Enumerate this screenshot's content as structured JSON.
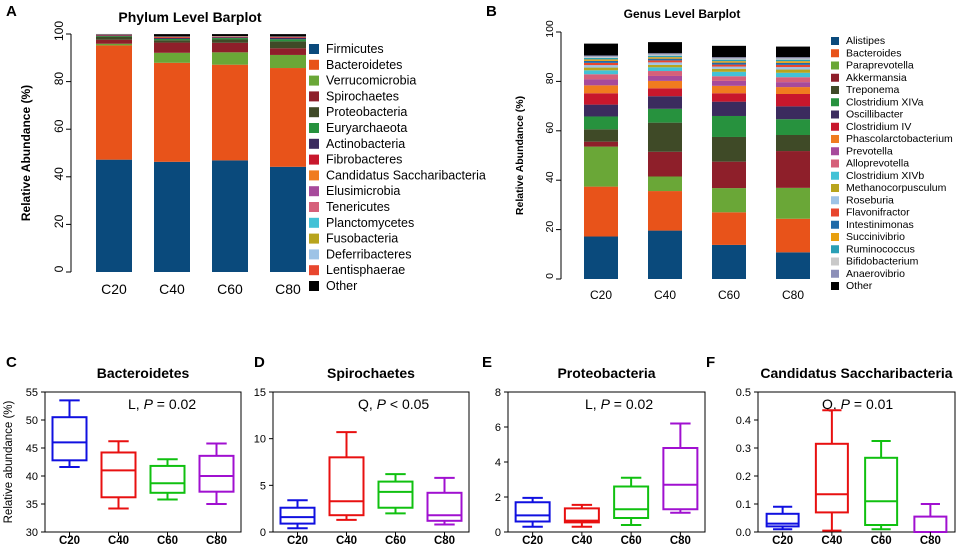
{
  "chart_data": [
    {
      "panel": "A",
      "type": "bar",
      "stacked": true,
      "title": "Phylum Level Barplot",
      "ylabel": "Relative Abundance (%)",
      "xlabel": "",
      "ylim": [
        0,
        100
      ],
      "yticks": [
        0,
        20,
        40,
        60,
        80,
        100
      ],
      "categories": [
        "C20",
        "C40",
        "C60",
        "C80"
      ],
      "legend_position": "right",
      "series": [
        {
          "name": "Firmicutes",
          "color": "#0a4a7c",
          "values": [
            47.2,
            46.3,
            46.9,
            44.2
          ]
        },
        {
          "name": "Bacteroidetes",
          "color": "#e8531a",
          "values": [
            48.0,
            41.6,
            40.2,
            41.5
          ]
        },
        {
          "name": "Verrucomicrobia",
          "color": "#6aa737",
          "values": [
            0.7,
            4.2,
            5.2,
            5.5
          ]
        },
        {
          "name": "Spirochaetes",
          "color": "#8e1f2a",
          "values": [
            1.7,
            4.3,
            4.0,
            2.8
          ]
        },
        {
          "name": "Proteobacteria",
          "color": "#3f4a27",
          "values": [
            1.3,
            1.0,
            1.4,
            2.9
          ]
        },
        {
          "name": "Euryarchaeota",
          "color": "#27923e",
          "values": [
            0.3,
            0.5,
            0.6,
            0.9
          ]
        },
        {
          "name": "Actinobacteria",
          "color": "#3b2b5e",
          "values": [
            0.2,
            0.4,
            0.3,
            0.6
          ]
        },
        {
          "name": "Fibrobacteres",
          "color": "#c8172c",
          "values": [
            0.2,
            0.3,
            0.2,
            0.3
          ]
        },
        {
          "name": "Candidatus Saccharibacteria",
          "color": "#f07c1f",
          "values": [
            0.05,
            0.15,
            0.1,
            0.05
          ]
        },
        {
          "name": "Elusimicrobia",
          "color": "#a74a9b",
          "values": [
            0.05,
            0.05,
            0.05,
            0.05
          ]
        },
        {
          "name": "Tenericutes",
          "color": "#d6607a",
          "values": [
            0.05,
            0.05,
            0.05,
            0.05
          ]
        },
        {
          "name": "Planctomycetes",
          "color": "#43c2d6",
          "values": [
            0.05,
            0.05,
            0.05,
            0.05
          ]
        },
        {
          "name": "Fusobacteria",
          "color": "#b8a41d",
          "values": [
            0.02,
            0.02,
            0.02,
            0.02
          ]
        },
        {
          "name": "Deferribacteres",
          "color": "#9ec3e6",
          "values": [
            0.02,
            0.02,
            0.02,
            0.02
          ]
        },
        {
          "name": "Lentisphaerae",
          "color": "#e8462e",
          "values": [
            0.02,
            0.02,
            0.02,
            0.02
          ]
        },
        {
          "name": "Other",
          "color": "#000000",
          "values": [
            0.15,
            0.99,
            0.85,
            0.99
          ]
        }
      ]
    },
    {
      "panel": "B",
      "type": "bar",
      "stacked": true,
      "title": "Genus Level Barplot",
      "ylabel": "Relative Abundance (%)",
      "xlabel": "",
      "ylim": [
        0,
        100
      ],
      "yticks": [
        0,
        20,
        40,
        60,
        80,
        100
      ],
      "categories": [
        "C20",
        "C40",
        "C60",
        "C80"
      ],
      "legend_position": "right",
      "series": [
        {
          "name": "Alistipes",
          "color": "#0a4a7c",
          "values": [
            17.2,
            19.6,
            13.8,
            10.8
          ]
        },
        {
          "name": "Bacteroides",
          "color": "#e8531a",
          "values": [
            20.2,
            16.0,
            13.2,
            13.6
          ]
        },
        {
          "name": "Paraprevotella",
          "color": "#6aa737",
          "values": [
            16.2,
            5.9,
            9.8,
            12.5
          ]
        },
        {
          "name": "Akkermansia",
          "color": "#8e1f2a",
          "values": [
            2.0,
            10.0,
            10.7,
            14.9
          ]
        },
        {
          "name": "Treponema",
          "color": "#3f4a27",
          "values": [
            5.0,
            11.8,
            10.0,
            6.5
          ]
        },
        {
          "name": "Clostridium XIVa",
          "color": "#27923e",
          "values": [
            5.2,
            5.6,
            8.5,
            6.4
          ]
        },
        {
          "name": "Oscillibacter",
          "color": "#3b2b5e",
          "values": [
            4.8,
            5.1,
            5.8,
            5.2
          ]
        },
        {
          "name": "Clostridium IV",
          "color": "#c8172c",
          "values": [
            4.6,
            3.2,
            3.4,
            5.0
          ]
        },
        {
          "name": "Phascolarctobacterium",
          "color": "#f07c1f",
          "values": [
            3.2,
            3.0,
            3.0,
            2.8
          ]
        },
        {
          "name": "Prevotella",
          "color": "#a74a9b",
          "values": [
            2.4,
            2.0,
            2.0,
            2.0
          ]
        },
        {
          "name": "Alloprevotella",
          "color": "#d6607a",
          "values": [
            2.1,
            2.0,
            1.9,
            2.0
          ]
        },
        {
          "name": "Clostridium XIVb",
          "color": "#43c2d6",
          "values": [
            1.6,
            1.5,
            1.8,
            1.8
          ]
        },
        {
          "name": "Methanocorpusculum",
          "color": "#b8a41d",
          "values": [
            1.1,
            1.0,
            1.2,
            1.3
          ]
        },
        {
          "name": "Roseburia",
          "color": "#9ec3e6",
          "values": [
            1.0,
            1.0,
            0.9,
            1.0
          ]
        },
        {
          "name": "Flavonifractor",
          "color": "#e8462e",
          "values": [
            0.9,
            0.8,
            0.8,
            0.9
          ]
        },
        {
          "name": "Intestinimonas",
          "color": "#1f6aa8",
          "values": [
            0.8,
            0.7,
            0.8,
            0.8
          ]
        },
        {
          "name": "Succinivibrio",
          "color": "#e8a00f",
          "values": [
            0.6,
            0.6,
            0.6,
            0.7
          ]
        },
        {
          "name": "Ruminococcus",
          "color": "#2a9fb5",
          "values": [
            0.6,
            0.6,
            0.6,
            0.6
          ]
        },
        {
          "name": "Bifidobacterium",
          "color": "#c9c9c9",
          "values": [
            0.5,
            0.5,
            0.5,
            0.5
          ]
        },
        {
          "name": "Anaerovibrio",
          "color": "#8c8fb8",
          "values": [
            0.5,
            0.5,
            0.5,
            0.5
          ]
        },
        {
          "name": "Other",
          "color": "#000000",
          "values": [
            4.8,
            4.5,
            4.6,
            4.3
          ]
        }
      ]
    },
    {
      "panel": "C",
      "type": "boxplot",
      "title": "Bacteroidetes",
      "ylabel": "Relative abundance (%)",
      "ylim": [
        30,
        55
      ],
      "yticks": [
        30,
        35,
        40,
        45,
        50,
        55
      ],
      "annotation": {
        "prefix": "L, ",
        "p": "P",
        "suffix": " = 0.02"
      },
      "categories": [
        "C20",
        "C40",
        "C60",
        "C80"
      ],
      "colors": [
        "#1010e0",
        "#e81010",
        "#10c010",
        "#a010d0"
      ],
      "boxes": [
        {
          "min": 41.6,
          "q1": 42.8,
          "median": 46.0,
          "q3": 50.5,
          "max": 53.5
        },
        {
          "min": 34.2,
          "q1": 36.2,
          "median": 41.0,
          "q3": 44.2,
          "max": 46.2
        },
        {
          "min": 35.8,
          "q1": 37.0,
          "median": 38.7,
          "q3": 41.8,
          "max": 43.0
        },
        {
          "min": 35.0,
          "q1": 37.2,
          "median": 40.0,
          "q3": 43.6,
          "max": 45.8
        }
      ]
    },
    {
      "panel": "D",
      "type": "boxplot",
      "title": "Spirochaetes",
      "ylabel": "",
      "ylim": [
        0,
        15
      ],
      "yticks": [
        0,
        5,
        10,
        15
      ],
      "annotation": {
        "prefix": "Q, ",
        "p": "P",
        "suffix": " < 0.05"
      },
      "categories": [
        "C20",
        "C40",
        "C60",
        "C80"
      ],
      "colors": [
        "#1010e0",
        "#e81010",
        "#10c010",
        "#a010d0"
      ],
      "boxes": [
        {
          "min": 0.4,
          "q1": 0.9,
          "median": 1.6,
          "q3": 2.6,
          "max": 3.4
        },
        {
          "min": 1.3,
          "q1": 1.8,
          "median": 3.3,
          "q3": 8.0,
          "max": 10.7
        },
        {
          "min": 2.0,
          "q1": 2.6,
          "median": 4.3,
          "q3": 5.4,
          "max": 6.2
        },
        {
          "min": 0.8,
          "q1": 1.2,
          "median": 1.8,
          "q3": 4.2,
          "max": 5.8
        }
      ]
    },
    {
      "panel": "E",
      "type": "boxplot",
      "title": "Proteobacteria",
      "ylabel": "",
      "ylim": [
        0,
        8
      ],
      "yticks": [
        0,
        2,
        4,
        6,
        8
      ],
      "annotation": {
        "prefix": "L, ",
        "p": "P",
        "suffix": " = 0.02"
      },
      "categories": [
        "C20",
        "C40",
        "C60",
        "C80"
      ],
      "colors": [
        "#1010e0",
        "#e81010",
        "#10c010",
        "#a010d0"
      ],
      "boxes": [
        {
          "min": 0.3,
          "q1": 0.6,
          "median": 0.95,
          "q3": 1.7,
          "max": 1.95
        },
        {
          "min": 0.3,
          "q1": 0.55,
          "median": 0.65,
          "q3": 1.35,
          "max": 1.55
        },
        {
          "min": 0.4,
          "q1": 0.8,
          "median": 1.3,
          "q3": 2.6,
          "max": 3.1
        },
        {
          "min": 1.1,
          "q1": 1.3,
          "median": 2.7,
          "q3": 4.8,
          "max": 6.2
        }
      ]
    },
    {
      "panel": "F",
      "type": "boxplot",
      "title": "Candidatus Saccharibacteria",
      "ylabel": "",
      "ylim": [
        0,
        0.5
      ],
      "yticks": [
        0.0,
        0.1,
        0.2,
        0.3,
        0.4,
        0.5
      ],
      "annotation": {
        "prefix": "Q, ",
        "p": "P",
        "suffix": " = 0.01"
      },
      "categories": [
        "C20",
        "C40",
        "C60",
        "C80"
      ],
      "colors": [
        "#1010e0",
        "#e81010",
        "#10c010",
        "#a010d0"
      ],
      "boxes": [
        {
          "min": 0.01,
          "q1": 0.02,
          "median": 0.03,
          "q3": 0.065,
          "max": 0.09
        },
        {
          "min": 0.005,
          "q1": 0.07,
          "median": 0.135,
          "q3": 0.315,
          "max": 0.435
        },
        {
          "min": 0.01,
          "q1": 0.025,
          "median": 0.11,
          "q3": 0.265,
          "max": 0.325
        },
        {
          "min": 0.0,
          "q1": 0.0,
          "median": 0.0,
          "q3": 0.055,
          "max": 0.1
        }
      ]
    }
  ]
}
